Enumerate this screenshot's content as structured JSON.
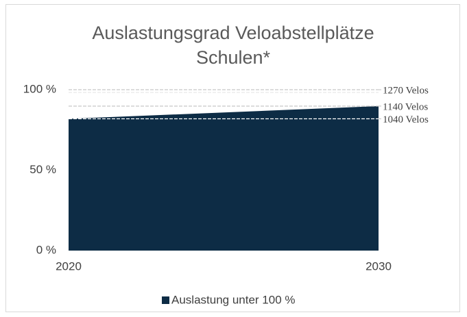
{
  "chart_data": {
    "type": "area",
    "title": "Auslastungsgrad Veloabstellplätze Schulen*",
    "x": [
      2020,
      2030
    ],
    "xlim": [
      2020,
      2030
    ],
    "xticks": [
      2020,
      2030
    ],
    "series": [
      {
        "name": "Auslastung unter 100 %",
        "color": "#0d2c45",
        "values": [
          81.9,
          89.8
        ]
      }
    ],
    "ylim": [
      0,
      100
    ],
    "yticks": [
      {
        "value": 0,
        "label": "0 %"
      },
      {
        "value": 50,
        "label": "50 %"
      },
      {
        "value": 100,
        "label": "100 %"
      }
    ],
    "annotations": [
      {
        "label": "1270 Velos",
        "value": 100
      },
      {
        "label": "1140 Velos",
        "value": 89.8
      },
      {
        "label": "1040 Velos",
        "value": 81.9
      }
    ],
    "legend": "bottom"
  }
}
